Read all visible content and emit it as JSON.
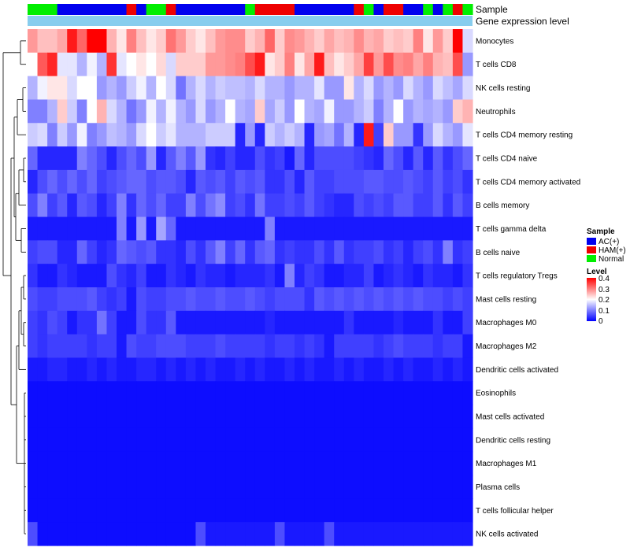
{
  "chart_data": {
    "type": "heatmap",
    "title": "",
    "column_annotation_labels": [
      "Sample",
      "Gene expression level"
    ],
    "column_sample_groups": [
      2,
      2,
      2,
      0,
      0,
      0,
      0,
      0,
      0,
      0,
      1,
      0,
      2,
      2,
      1,
      0,
      0,
      0,
      0,
      0,
      0,
      0,
      2,
      1,
      1,
      1,
      1,
      0,
      0,
      0,
      0,
      0,
      0,
      1,
      2,
      0,
      1,
      1,
      0,
      0,
      2,
      0,
      2,
      1,
      2
    ],
    "rows": [
      "Monocytes",
      "T cells CD8",
      "NK cells resting",
      "Neutrophils",
      "T cells CD4 memory resting",
      "T cells CD4 naive",
      "T cells CD4 memory activated",
      "B cells memory",
      "T cells gamma delta",
      "B cells naive",
      "T cells regulatory  Tregs",
      "Mast cells resting",
      "Macrophages M0",
      "Macrophages M2",
      "Dendritic cells activated",
      "Eosinophils",
      "Mast cells activated",
      "Dendritic cells resting",
      "Macrophages M1",
      "Plasma cells",
      "T cells follicular helper",
      "NK cells activated"
    ],
    "values": [
      [
        0.28,
        0.25,
        0.25,
        0.27,
        0.38,
        0.32,
        0.4,
        0.4,
        0.26,
        0.22,
        0.3,
        0.25,
        0.22,
        0.24,
        0.31,
        0.28,
        0.24,
        0.22,
        0.25,
        0.28,
        0.29,
        0.29,
        0.24,
        0.26,
        0.32,
        0.24,
        0.29,
        0.28,
        0.26,
        0.24,
        0.27,
        0.25,
        0.26,
        0.29,
        0.26,
        0.27,
        0.24,
        0.25,
        0.24,
        0.3,
        0.22,
        0.28,
        0.24,
        0.4,
        0.17
      ],
      [
        0.2,
        0.33,
        0.37,
        0.18,
        0.18,
        0.14,
        0.19,
        0.14,
        0.36,
        0.18,
        0.2,
        0.22,
        0.2,
        0.23,
        0.17,
        0.24,
        0.24,
        0.24,
        0.28,
        0.28,
        0.29,
        0.3,
        0.34,
        0.38,
        0.22,
        0.24,
        0.3,
        0.22,
        0.27,
        0.38,
        0.25,
        0.22,
        0.24,
        0.27,
        0.35,
        0.28,
        0.34,
        0.29,
        0.3,
        0.27,
        0.3,
        0.26,
        0.25,
        0.34,
        0.12
      ],
      [
        0.14,
        0.19,
        0.22,
        0.22,
        0.17,
        0.2,
        0.2,
        0.12,
        0.14,
        0.12,
        0.16,
        0.19,
        0.14,
        0.2,
        0.17,
        0.09,
        0.14,
        0.17,
        0.14,
        0.16,
        0.15,
        0.15,
        0.14,
        0.17,
        0.14,
        0.14,
        0.12,
        0.14,
        0.14,
        0.18,
        0.12,
        0.12,
        0.22,
        0.14,
        0.17,
        0.12,
        0.14,
        0.12,
        0.17,
        0.14,
        0.12,
        0.17,
        0.15,
        0.13,
        0.17
      ],
      [
        0.1,
        0.1,
        0.14,
        0.24,
        0.16,
        0.1,
        0.2,
        0.26,
        0.17,
        0.14,
        0.09,
        0.12,
        0.19,
        0.14,
        0.19,
        0.14,
        0.12,
        0.17,
        0.12,
        0.14,
        0.2,
        0.14,
        0.13,
        0.24,
        0.13,
        0.16,
        0.12,
        0.2,
        0.14,
        0.13,
        0.19,
        0.12,
        0.12,
        0.14,
        0.16,
        0.1,
        0.14,
        0.2,
        0.12,
        0.14,
        0.13,
        0.14,
        0.12,
        0.24,
        0.26
      ],
      [
        0.16,
        0.17,
        0.1,
        0.16,
        0.12,
        0.19,
        0.1,
        0.12,
        0.15,
        0.14,
        0.12,
        0.17,
        0.2,
        0.16,
        0.18,
        0.14,
        0.14,
        0.14,
        0.16,
        0.16,
        0.16,
        0.03,
        0.12,
        0.03,
        0.16,
        0.14,
        0.16,
        0.14,
        0.03,
        0.12,
        0.13,
        0.09,
        0.14,
        0.03,
        0.38,
        0.05,
        0.24,
        0.12,
        0.12,
        0.04,
        0.12,
        0.17,
        0.14,
        0.12,
        0.18
      ],
      [
        0.08,
        0.03,
        0.03,
        0.03,
        0.03,
        0.1,
        0.08,
        0.06,
        0.03,
        0.06,
        0.08,
        0.06,
        0.12,
        0.03,
        0.07,
        0.1,
        0.07,
        0.12,
        0.04,
        0.03,
        0.05,
        0.03,
        0.03,
        0.06,
        0.04,
        0.05,
        0.02,
        0.08,
        0.03,
        0.06,
        0.06,
        0.06,
        0.06,
        0.05,
        0.04,
        0.03,
        0.08,
        0.06,
        0.03,
        0.07,
        0.03,
        0.07,
        0.04,
        0.06,
        0.08
      ],
      [
        0.03,
        0.06,
        0.08,
        0.06,
        0.08,
        0.06,
        0.08,
        0.05,
        0.06,
        0.07,
        0.08,
        0.08,
        0.06,
        0.07,
        0.07,
        0.06,
        0.03,
        0.07,
        0.06,
        0.07,
        0.05,
        0.07,
        0.06,
        0.07,
        0.04,
        0.04,
        0.06,
        0.03,
        0.07,
        0.05,
        0.05,
        0.06,
        0.06,
        0.06,
        0.07,
        0.07,
        0.06,
        0.06,
        0.07,
        0.06,
        0.05,
        0.07,
        0.05,
        0.06,
        0.04
      ],
      [
        0.06,
        0.1,
        0.05,
        0.07,
        0.03,
        0.07,
        0.06,
        0.03,
        0.05,
        0.1,
        0.04,
        0.08,
        0.06,
        0.08,
        0.05,
        0.05,
        0.1,
        0.06,
        0.09,
        0.11,
        0.05,
        0.06,
        0.04,
        0.09,
        0.05,
        0.05,
        0.06,
        0.05,
        0.07,
        0.05,
        0.04,
        0.03,
        0.03,
        0.06,
        0.05,
        0.06,
        0.05,
        0.07,
        0.07,
        0.05,
        0.05,
        0.07,
        0.04,
        0.07,
        0.05
      ],
      [
        0.02,
        0.02,
        0.02,
        0.02,
        0.02,
        0.02,
        0.02,
        0.02,
        0.02,
        0.1,
        0.02,
        0.12,
        0.02,
        0.13,
        0.08,
        0.02,
        0.02,
        0.02,
        0.02,
        0.02,
        0.02,
        0.02,
        0.02,
        0.02,
        0.1,
        0.02,
        0.02,
        0.02,
        0.02,
        0.02,
        0.02,
        0.02,
        0.02,
        0.02,
        0.02,
        0.02,
        0.02,
        0.02,
        0.02,
        0.02,
        0.02,
        0.02,
        0.02,
        0.02,
        0.02
      ],
      [
        0.05,
        0.06,
        0.06,
        0.03,
        0.03,
        0.08,
        0.05,
        0.03,
        0.04,
        0.08,
        0.07,
        0.06,
        0.07,
        0.04,
        0.04,
        0.03,
        0.06,
        0.04,
        0.07,
        0.1,
        0.05,
        0.08,
        0.04,
        0.07,
        0.08,
        0.04,
        0.05,
        0.04,
        0.04,
        0.06,
        0.04,
        0.07,
        0.04,
        0.05,
        0.05,
        0.06,
        0.04,
        0.05,
        0.03,
        0.05,
        0.06,
        0.04,
        0.1,
        0.04,
        0.05
      ],
      [
        0.04,
        0.02,
        0.02,
        0.04,
        0.03,
        0.02,
        0.02,
        0.02,
        0.06,
        0.04,
        0.03,
        0.05,
        0.02,
        0.02,
        0.04,
        0.03,
        0.02,
        0.04,
        0.03,
        0.03,
        0.02,
        0.03,
        0.03,
        0.03,
        0.04,
        0.02,
        0.1,
        0.03,
        0.05,
        0.04,
        0.02,
        0.02,
        0.03,
        0.03,
        0.05,
        0.02,
        0.03,
        0.04,
        0.03,
        0.02,
        0.04,
        0.03,
        0.03,
        0.02,
        0.04
      ],
      [
        0.06,
        0.05,
        0.05,
        0.06,
        0.06,
        0.06,
        0.07,
        0.05,
        0.04,
        0.05,
        0.02,
        0.06,
        0.05,
        0.05,
        0.06,
        0.06,
        0.07,
        0.06,
        0.06,
        0.07,
        0.06,
        0.06,
        0.07,
        0.06,
        0.05,
        0.06,
        0.06,
        0.06,
        0.04,
        0.07,
        0.06,
        0.07,
        0.06,
        0.07,
        0.06,
        0.07,
        0.06,
        0.07,
        0.06,
        0.07,
        0.06,
        0.06,
        0.05,
        0.06,
        0.05
      ],
      [
        0.05,
        0.04,
        0.06,
        0.05,
        0.02,
        0.04,
        0.04,
        0.09,
        0.05,
        0.02,
        0.02,
        0.06,
        0.04,
        0.04,
        0.07,
        0.02,
        0.02,
        0.02,
        0.02,
        0.02,
        0.02,
        0.02,
        0.02,
        0.02,
        0.03,
        0.02,
        0.02,
        0.02,
        0.02,
        0.02,
        0.02,
        0.02,
        0.04,
        0.02,
        0.02,
        0.02,
        0.02,
        0.03,
        0.02,
        0.02,
        0.02,
        0.04,
        0.02,
        0.02,
        0.05
      ],
      [
        0.05,
        0.04,
        0.05,
        0.05,
        0.05,
        0.05,
        0.04,
        0.05,
        0.05,
        0.02,
        0.06,
        0.05,
        0.05,
        0.06,
        0.06,
        0.06,
        0.05,
        0.05,
        0.05,
        0.06,
        0.05,
        0.05,
        0.05,
        0.05,
        0.04,
        0.05,
        0.05,
        0.04,
        0.05,
        0.04,
        0.02,
        0.05,
        0.05,
        0.05,
        0.05,
        0.04,
        0.05,
        0.06,
        0.05,
        0.05,
        0.05,
        0.04,
        0.05,
        0.05,
        0.02
      ],
      [
        0.02,
        0.02,
        0.03,
        0.03,
        0.02,
        0.02,
        0.03,
        0.02,
        0.03,
        0.02,
        0.02,
        0.03,
        0.03,
        0.02,
        0.03,
        0.02,
        0.03,
        0.02,
        0.03,
        0.02,
        0.02,
        0.03,
        0.02,
        0.03,
        0.02,
        0.02,
        0.03,
        0.02,
        0.03,
        0.02,
        0.02,
        0.03,
        0.02,
        0.03,
        0.02,
        0.02,
        0.03,
        0.02,
        0.03,
        0.02,
        0.02,
        0.03,
        0.02,
        0.03,
        0.02
      ],
      [
        0.01,
        0.01,
        0.01,
        0.01,
        0.01,
        0.01,
        0.01,
        0.01,
        0.01,
        0.01,
        0.01,
        0.01,
        0.01,
        0.01,
        0.01,
        0.01,
        0.01,
        0.01,
        0.01,
        0.01,
        0.01,
        0.01,
        0.01,
        0.01,
        0.01,
        0.01,
        0.01,
        0.01,
        0.01,
        0.01,
        0.01,
        0.01,
        0.01,
        0.01,
        0.01,
        0.01,
        0.01,
        0.01,
        0.01,
        0.01,
        0.01,
        0.01,
        0.01,
        0.01,
        0.01
      ],
      [
        0.01,
        0.01,
        0.01,
        0.01,
        0.01,
        0.01,
        0.01,
        0.01,
        0.01,
        0.01,
        0.01,
        0.01,
        0.01,
        0.01,
        0.01,
        0.01,
        0.01,
        0.01,
        0.01,
        0.01,
        0.01,
        0.01,
        0.01,
        0.01,
        0.01,
        0.01,
        0.01,
        0.01,
        0.01,
        0.01,
        0.01,
        0.01,
        0.01,
        0.01,
        0.01,
        0.01,
        0.01,
        0.01,
        0.01,
        0.01,
        0.01,
        0.01,
        0.01,
        0.01,
        0.01
      ],
      [
        0.01,
        0.01,
        0.01,
        0.01,
        0.01,
        0.01,
        0.01,
        0.01,
        0.01,
        0.01,
        0.01,
        0.01,
        0.01,
        0.01,
        0.01,
        0.01,
        0.01,
        0.01,
        0.01,
        0.01,
        0.01,
        0.01,
        0.01,
        0.01,
        0.01,
        0.01,
        0.01,
        0.01,
        0.01,
        0.01,
        0.01,
        0.01,
        0.01,
        0.01,
        0.01,
        0.01,
        0.01,
        0.01,
        0.01,
        0.01,
        0.01,
        0.01,
        0.01,
        0.01,
        0.01
      ],
      [
        0.01,
        0.01,
        0.01,
        0.01,
        0.01,
        0.01,
        0.01,
        0.01,
        0.01,
        0.01,
        0.01,
        0.01,
        0.01,
        0.01,
        0.01,
        0.01,
        0.01,
        0.01,
        0.01,
        0.01,
        0.01,
        0.01,
        0.01,
        0.01,
        0.01,
        0.01,
        0.01,
        0.01,
        0.01,
        0.01,
        0.01,
        0.01,
        0.01,
        0.01,
        0.01,
        0.01,
        0.01,
        0.01,
        0.01,
        0.01,
        0.01,
        0.01,
        0.01,
        0.01,
        0.01
      ],
      [
        0.01,
        0.01,
        0.01,
        0.01,
        0.01,
        0.01,
        0.01,
        0.01,
        0.01,
        0.01,
        0.01,
        0.01,
        0.01,
        0.01,
        0.01,
        0.01,
        0.01,
        0.01,
        0.01,
        0.01,
        0.01,
        0.01,
        0.01,
        0.01,
        0.01,
        0.01,
        0.01,
        0.01,
        0.01,
        0.01,
        0.01,
        0.01,
        0.01,
        0.01,
        0.01,
        0.01,
        0.01,
        0.01,
        0.01,
        0.01,
        0.01,
        0.01,
        0.01,
        0.01,
        0.01
      ],
      [
        0.01,
        0.01,
        0.01,
        0.01,
        0.01,
        0.01,
        0.01,
        0.01,
        0.01,
        0.01,
        0.01,
        0.01,
        0.01,
        0.01,
        0.01,
        0.01,
        0.01,
        0.01,
        0.01,
        0.01,
        0.01,
        0.01,
        0.01,
        0.01,
        0.01,
        0.01,
        0.01,
        0.01,
        0.01,
        0.01,
        0.01,
        0.01,
        0.01,
        0.01,
        0.01,
        0.01,
        0.01,
        0.01,
        0.01,
        0.01,
        0.01,
        0.01,
        0.01,
        0.01,
        0.01
      ],
      [
        0.06,
        0.01,
        0.01,
        0.01,
        0.01,
        0.01,
        0.01,
        0.01,
        0.01,
        0.01,
        0.01,
        0.01,
        0.01,
        0.01,
        0.01,
        0.01,
        0.01,
        0.06,
        0.02,
        0.02,
        0.02,
        0.02,
        0.02,
        0.02,
        0.02,
        0.06,
        0.02,
        0.02,
        0.02,
        0.02,
        0.06,
        0.02,
        0.02,
        0.02,
        0.02,
        0.02,
        0.02,
        0.02,
        0.02,
        0.02,
        0.02,
        0.02,
        0.02,
        0.02,
        0.02
      ]
    ],
    "sample_legend": {
      "title": "Sample",
      "entries": [
        {
          "label": "AC(+)",
          "color": "#0000ee"
        },
        {
          "label": "HAM(+)",
          "color": "#ee0000"
        },
        {
          "label": "Normal",
          "color": "#00ee00"
        }
      ]
    },
    "level_legend": {
      "title": "Level",
      "ticks": [
        "0.4",
        "0.3",
        "0.2",
        "0.1",
        "0"
      ],
      "range": [
        0,
        0.4
      ]
    },
    "color_scale": {
      "low": "#0000ff",
      "mid": "#ffffff",
      "high": "#ff0000",
      "midpoint": 0.2
    },
    "gene_expression_color": "#87cdee",
    "legend_position": "right"
  }
}
